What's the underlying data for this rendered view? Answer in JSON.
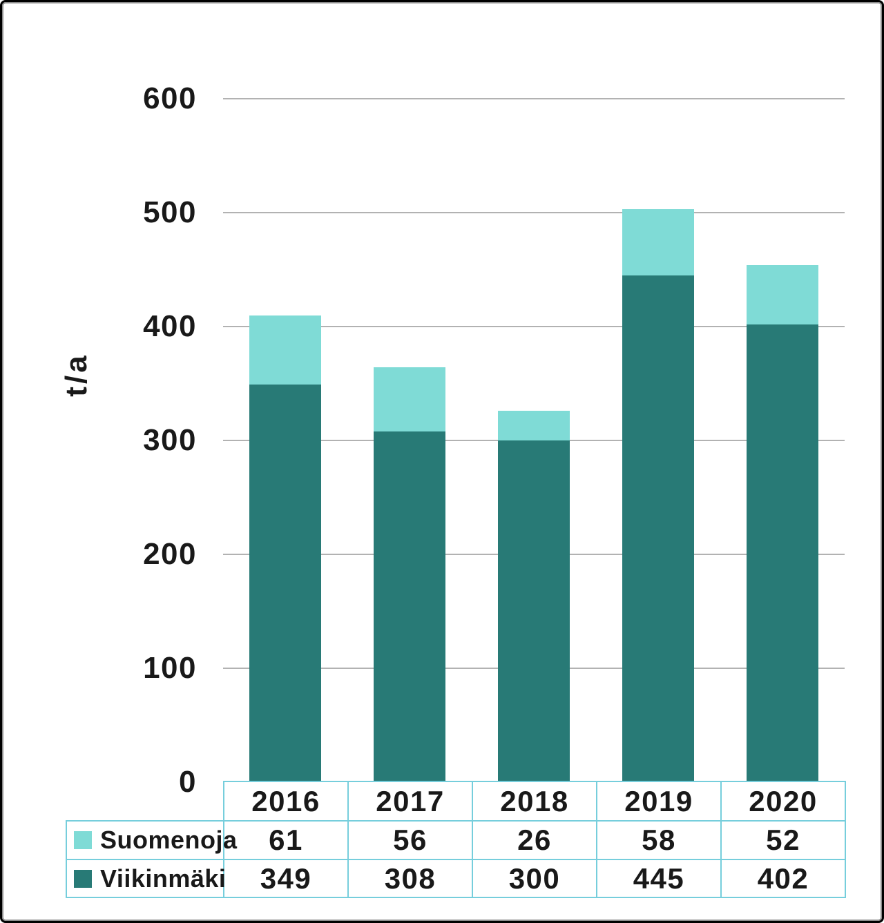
{
  "chart_data": {
    "type": "bar",
    "stacked": true,
    "title": "",
    "xlabel": "",
    "ylabel": "t/a",
    "ylim": [
      0,
      600
    ],
    "yticks": [
      0,
      100,
      200,
      300,
      400,
      500,
      600
    ],
    "grid": true,
    "legend_position": "table-rows-left",
    "categories": [
      "2016",
      "2017",
      "2018",
      "2019",
      "2020"
    ],
    "series": [
      {
        "name": "Suomenoja",
        "color": "#7FDBD6",
        "values": [
          61,
          56,
          26,
          58,
          52
        ]
      },
      {
        "name": "Viikinmäki",
        "color": "#287A76",
        "values": [
          349,
          308,
          300,
          445,
          402
        ]
      }
    ]
  },
  "colors": {
    "grid": "#B2B2B2",
    "table_border": "#76CEDC",
    "text": "#191919",
    "frame_outer": "#000000",
    "frame_inner": "#8C8C8C",
    "background": "#FFFFFF"
  }
}
